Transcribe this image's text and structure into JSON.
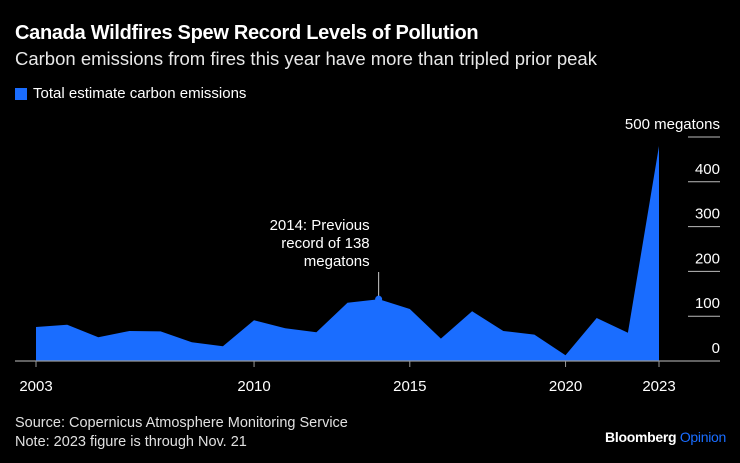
{
  "header": {
    "title": "Canada Wildfires Spew Record Levels of Pollution",
    "subtitle": "Carbon emissions from fires this year have more than tripled prior peak"
  },
  "chart_data": {
    "type": "area",
    "title": "Canada Wildfires Spew Record Levels of Pollution",
    "legend": [
      {
        "label": "Total estimate carbon emissions",
        "color": "#1a6dff"
      }
    ],
    "x": [
      2003,
      2004,
      2005,
      2006,
      2007,
      2008,
      2009,
      2010,
      2011,
      2012,
      2013,
      2014,
      2015,
      2016,
      2017,
      2018,
      2019,
      2020,
      2021,
      2022,
      2023
    ],
    "values": [
      76,
      81,
      53,
      67,
      66,
      42,
      33,
      91,
      73,
      64,
      130,
      138,
      116,
      50,
      111,
      67,
      59,
      13,
      96,
      63,
      480
    ],
    "x_ticks": [
      "2003",
      "2010",
      "2015",
      "2020",
      "2023"
    ],
    "x_tick_values": [
      2003,
      2010,
      2015,
      2020,
      2023
    ],
    "y_ticks": [
      "0",
      "100",
      "200",
      "300",
      "400",
      "500 megatons"
    ],
    "y_tick_values": [
      0,
      100,
      200,
      300,
      400,
      500
    ],
    "ylim": [
      0,
      500
    ],
    "xlim": [
      2003,
      2023
    ],
    "y_axis_side": "right",
    "annotation": {
      "year": 2014,
      "value": 138,
      "lines": [
        "2014: Previous",
        "record of 138",
        "megatons"
      ]
    },
    "color": "#1a6dff"
  },
  "footer": {
    "source": "Source: Copernicus Atmosphere Monitoring Service",
    "note": "Note: 2023 figure is through Nov. 21",
    "logo_main": "Bloomberg",
    "logo_accent": "Opinion"
  }
}
